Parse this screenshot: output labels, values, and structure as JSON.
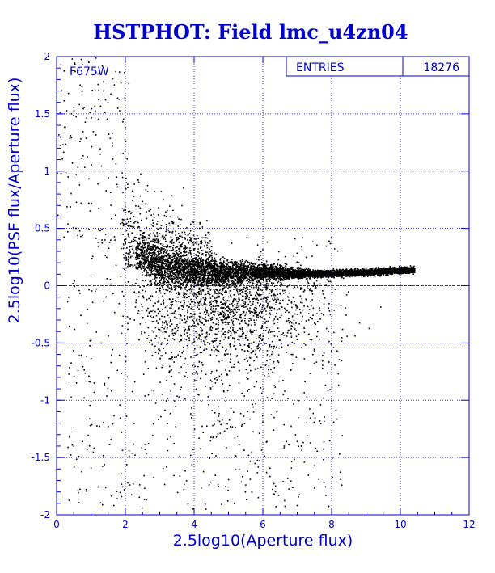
{
  "chart_data": {
    "type": "scatter",
    "title": "HSTPHOT: Field lmc_u4zn04",
    "xlabel": "2.5log10(Aperture flux)",
    "ylabel": "2.5log10(PSF flux/Aperture flux)",
    "xlim": [
      0,
      12
    ],
    "ylim": [
      -2,
      2
    ],
    "xticks": [
      "0",
      "2",
      "4",
      "6",
      "8",
      "10",
      "12"
    ],
    "yticks": [
      "-2",
      "-1.5",
      "-1",
      "-0.5",
      "0",
      "0.5",
      "1",
      "1.5",
      "2"
    ],
    "grid": true,
    "reference_line": {
      "y": 0,
      "color": "#cc0000",
      "style": "dashed"
    },
    "stats_box": {
      "label": "ENTRIES",
      "value": "18276",
      "placement": "top-right"
    },
    "annotation": "F675W",
    "point_color": "#000000",
    "density_model": {
      "description": "Dense locus near y≈0.1 from x≈2.3 to x≈10.4, fanning wider and downward toward faint end; sparse scatter elsewhere",
      "ridge": [
        [
          2.3,
          0.3
        ],
        [
          3,
          0.17
        ],
        [
          4,
          0.12
        ],
        [
          5,
          0.12
        ],
        [
          6,
          0.12
        ],
        [
          7,
          0.11
        ],
        [
          8,
          0.11
        ],
        [
          9,
          0.12
        ],
        [
          10,
          0.14
        ],
        [
          10.4,
          0.14
        ]
      ],
      "seed": 18276
    },
    "sample_points": [
      [
        0.2,
        1.62
      ],
      [
        0.55,
        1.48
      ],
      [
        0.75,
        1.35
      ],
      [
        1.05,
        1.35
      ],
      [
        1.25,
        1.2
      ],
      [
        0.5,
        1.95
      ],
      [
        1.0,
        1.55
      ],
      [
        1.6,
        1.25
      ],
      [
        1.9,
        0.95
      ],
      [
        0.1,
        1.3
      ],
      [
        1.2,
        0.35
      ],
      [
        0.7,
        -0.6
      ],
      [
        0.9,
        -1.3
      ],
      [
        1.5,
        -0.8
      ],
      [
        1.9,
        -1.75
      ],
      [
        3.2,
        -1.2
      ],
      [
        3.5,
        -1.8
      ],
      [
        4.6,
        -1.65
      ],
      [
        5.2,
        -1.6
      ],
      [
        6.8,
        -1.7
      ]
    ]
  }
}
